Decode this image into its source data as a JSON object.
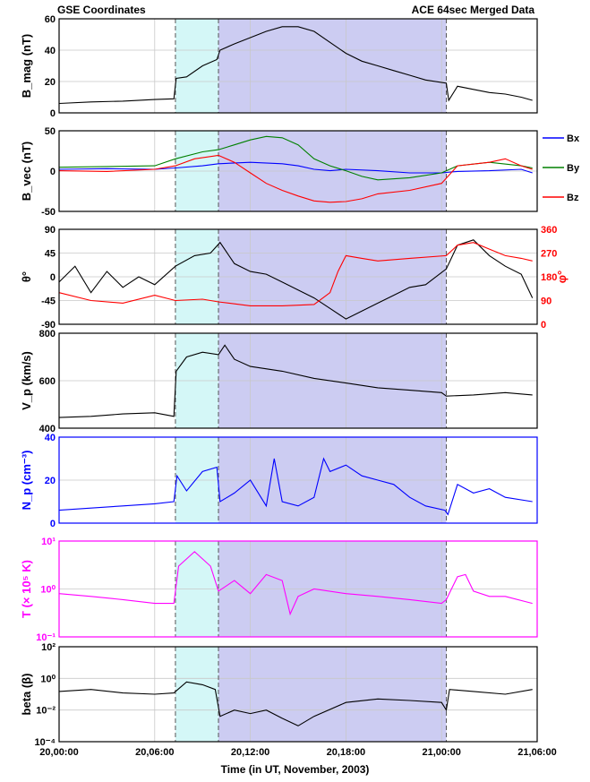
{
  "header": {
    "left": "GSE Coordinates",
    "right": "ACE 64sec Merged Data"
  },
  "xaxis": {
    "label": "Time (in UT, November, 2003)",
    "ticks": [
      "20,00:00",
      "20,06:00",
      "20,12:00",
      "20,18:00",
      "21,00:00",
      "21,06:00"
    ],
    "tick_hours": [
      0,
      6,
      12,
      18,
      24,
      30
    ],
    "range_hours": [
      0,
      30
    ]
  },
  "shading": {
    "sheath": {
      "start_hour": 7.3,
      "end_hour": 10.0,
      "color": "#d4f7f7"
    },
    "cloud": {
      "start_hour": 10.0,
      "end_hour": 24.3,
      "color": "#ccccf2"
    },
    "markers_hour": [
      7.3,
      10.0,
      24.3
    ]
  },
  "chart_data": [
    {
      "type": "line",
      "ylabel": "B_mag (nT)",
      "ylim": [
        0,
        60
      ],
      "yticks": [
        "0",
        "20",
        "40",
        "60"
      ],
      "grid": true,
      "series": [
        {
          "color": "#000000",
          "x": [
            0,
            2,
            4,
            6,
            7.2,
            7.35,
            8,
            9,
            9.9,
            10.1,
            11,
            12,
            13,
            14,
            15,
            16,
            17,
            18,
            19,
            20,
            21,
            22,
            23,
            24.3,
            24.45,
            25,
            26,
            27,
            28,
            29,
            29.7
          ],
          "values": [
            6,
            7,
            7.5,
            8.5,
            9,
            22,
            23,
            30,
            34,
            40,
            44,
            48,
            52,
            55,
            55,
            52,
            45,
            38,
            33,
            30,
            27,
            24,
            21,
            19,
            8,
            17,
            15,
            13,
            12,
            10,
            8
          ]
        }
      ]
    },
    {
      "type": "line",
      "ylabel": "B_vec (nT)",
      "ylim": [
        -60,
        55
      ],
      "yticks": [
        "-50",
        "0",
        "50"
      ],
      "grid": true,
      "legend": "right",
      "series": [
        {
          "name": "Bx",
          "color": "#0000ff",
          "x": [
            0,
            3,
            6,
            7.3,
            9,
            10,
            12,
            14,
            15,
            16,
            17,
            18,
            20,
            22,
            24,
            25,
            27,
            29,
            29.7
          ],
          "values": [
            0,
            1,
            0,
            2,
            5,
            8,
            10,
            8,
            5,
            0,
            -2,
            0,
            -2,
            -5,
            -5,
            -3,
            -2,
            0,
            -5
          ]
        },
        {
          "name": "By",
          "color": "#008000",
          "x": [
            0,
            3,
            6,
            7.3,
            9,
            10,
            11,
            12,
            13,
            14,
            15,
            16,
            17,
            18,
            19,
            20,
            22,
            24,
            25,
            27,
            29,
            29.7
          ],
          "values": [
            3,
            4,
            5,
            15,
            25,
            28,
            35,
            42,
            47,
            45,
            35,
            15,
            5,
            -2,
            -10,
            -15,
            -12,
            -5,
            5,
            10,
            5,
            2
          ]
        },
        {
          "name": "Bz",
          "color": "#ff0000",
          "x": [
            0,
            3,
            6,
            7.3,
            8.5,
            10,
            11,
            12,
            13,
            14,
            15,
            16,
            17,
            18,
            19,
            20,
            22,
            24,
            25,
            27,
            28,
            29,
            29.7
          ],
          "values": [
            -2,
            -3,
            0,
            5,
            15,
            20,
            10,
            -5,
            -20,
            -30,
            -38,
            -45,
            -47,
            -46,
            -42,
            -35,
            -30,
            -20,
            5,
            10,
            15,
            5,
            0
          ]
        }
      ]
    },
    {
      "type": "line",
      "ylabel": "θ°",
      "ylabel_right": "φ°",
      "ylim": [
        -90,
        90
      ],
      "yticks": [
        "-90",
        "-45",
        "0",
        "45",
        "90"
      ],
      "ylim_right": [
        0,
        360
      ],
      "yticks_right": [
        "0",
        "90",
        "180",
        "270",
        "360"
      ],
      "grid": true,
      "series": [
        {
          "name": "θ",
          "color": "#000000",
          "axis": "left",
          "x": [
            0,
            1,
            2,
            3,
            4,
            5,
            6,
            7.3,
            8.5,
            9.5,
            10.1,
            11,
            12,
            13,
            14,
            15,
            16,
            17,
            18,
            19,
            20,
            21,
            22,
            23,
            24.3,
            25,
            26,
            27,
            28,
            29,
            29.7
          ],
          "values": [
            -10,
            20,
            -30,
            10,
            -20,
            0,
            -15,
            20,
            40,
            45,
            65,
            25,
            10,
            5,
            -10,
            -25,
            -40,
            -60,
            -80,
            -65,
            -50,
            -35,
            -20,
            -15,
            15,
            60,
            70,
            40,
            20,
            5,
            -40
          ]
        },
        {
          "name": "φ",
          "color": "#ff0000",
          "axis": "right",
          "x": [
            0,
            2,
            4,
            6,
            7.3,
            9,
            10,
            12,
            14,
            16,
            17,
            17.5,
            18,
            19,
            20,
            22,
            24.3,
            25,
            26,
            27,
            28,
            29,
            29.7
          ],
          "values": [
            120,
            90,
            80,
            110,
            90,
            95,
            85,
            70,
            70,
            75,
            120,
            200,
            260,
            250,
            240,
            250,
            260,
            300,
            310,
            285,
            260,
            250,
            240
          ]
        }
      ]
    },
    {
      "type": "line",
      "ylabel": "V_p (km/s)",
      "ylim": [
        400,
        800
      ],
      "yticks": [
        "400",
        "600",
        "800"
      ],
      "grid": true,
      "series": [
        {
          "color": "#000000",
          "x": [
            0,
            2,
            4,
            6,
            7.2,
            7.35,
            8,
            9,
            10,
            10.4,
            11,
            12,
            14,
            16,
            18,
            20,
            22,
            24,
            24.3,
            26,
            28,
            29.7
          ],
          "values": [
            445,
            450,
            460,
            465,
            450,
            640,
            700,
            720,
            710,
            750,
            690,
            660,
            640,
            610,
            590,
            570,
            560,
            550,
            535,
            540,
            550,
            540
          ]
        }
      ]
    },
    {
      "type": "line",
      "ylabel": "N_p (cm⁻³)",
      "ylim": [
        0,
        40
      ],
      "yticks": [
        "0",
        "20",
        "40"
      ],
      "grid": true,
      "series": [
        {
          "color": "#0000ff",
          "x": [
            0,
            2,
            4,
            6,
            7.2,
            7.4,
            8,
            9,
            9.9,
            10.1,
            11,
            12,
            13,
            13.5,
            14,
            15,
            16,
            16.6,
            17,
            18,
            19,
            20,
            21,
            22,
            23,
            24.2,
            24.4,
            25,
            26,
            27,
            28,
            29.7
          ],
          "values": [
            6,
            7,
            8,
            9,
            10,
            22,
            15,
            24,
            26,
            10,
            14,
            20,
            8,
            30,
            10,
            8,
            12,
            30,
            24,
            27,
            22,
            20,
            18,
            12,
            8,
            6,
            4,
            18,
            14,
            16,
            12,
            10
          ]
        }
      ]
    },
    {
      "type": "line",
      "ylabel": "T (× 10⁵ K)",
      "yscale": "log",
      "ylim": [
        0.1,
        10
      ],
      "yticks": [
        "10⁻¹",
        "10⁰",
        "10¹"
      ],
      "grid": true,
      "series": [
        {
          "color": "#ff00ff",
          "x": [
            0,
            2,
            4,
            6,
            7.2,
            7.5,
            8.5,
            9.5,
            10,
            11,
            12,
            13,
            14,
            14.5,
            15,
            16,
            18,
            20,
            22,
            24,
            24.3,
            25,
            25.5,
            26,
            27,
            28,
            29.7
          ],
          "values": [
            0.8,
            0.7,
            0.6,
            0.5,
            0.5,
            3,
            6,
            3,
            0.9,
            1.5,
            0.8,
            2,
            1.5,
            0.3,
            0.7,
            1,
            0.8,
            0.7,
            0.6,
            0.5,
            0.6,
            1.8,
            2,
            0.9,
            0.7,
            0.7,
            0.5
          ]
        }
      ]
    },
    {
      "type": "line",
      "ylabel": "beta (β)",
      "yscale": "log",
      "ylim": [
        0.0001,
        100
      ],
      "yticks": [
        "10⁻⁴",
        "10⁻²",
        "10⁰",
        "10²"
      ],
      "grid": true,
      "series": [
        {
          "color": "#000000",
          "x": [
            0,
            2,
            4,
            6,
            7.2,
            8,
            9,
            9.8,
            10.1,
            11,
            12,
            13,
            14,
            15,
            16,
            18,
            20,
            22,
            24,
            24.3,
            24.5,
            26,
            28,
            29.7
          ],
          "values": [
            0.15,
            0.2,
            0.12,
            0.1,
            0.12,
            0.6,
            0.4,
            0.2,
            0.004,
            0.01,
            0.006,
            0.01,
            0.003,
            0.001,
            0.004,
            0.03,
            0.05,
            0.04,
            0.03,
            0.01,
            0.2,
            0.15,
            0.1,
            0.2
          ]
        }
      ]
    }
  ]
}
